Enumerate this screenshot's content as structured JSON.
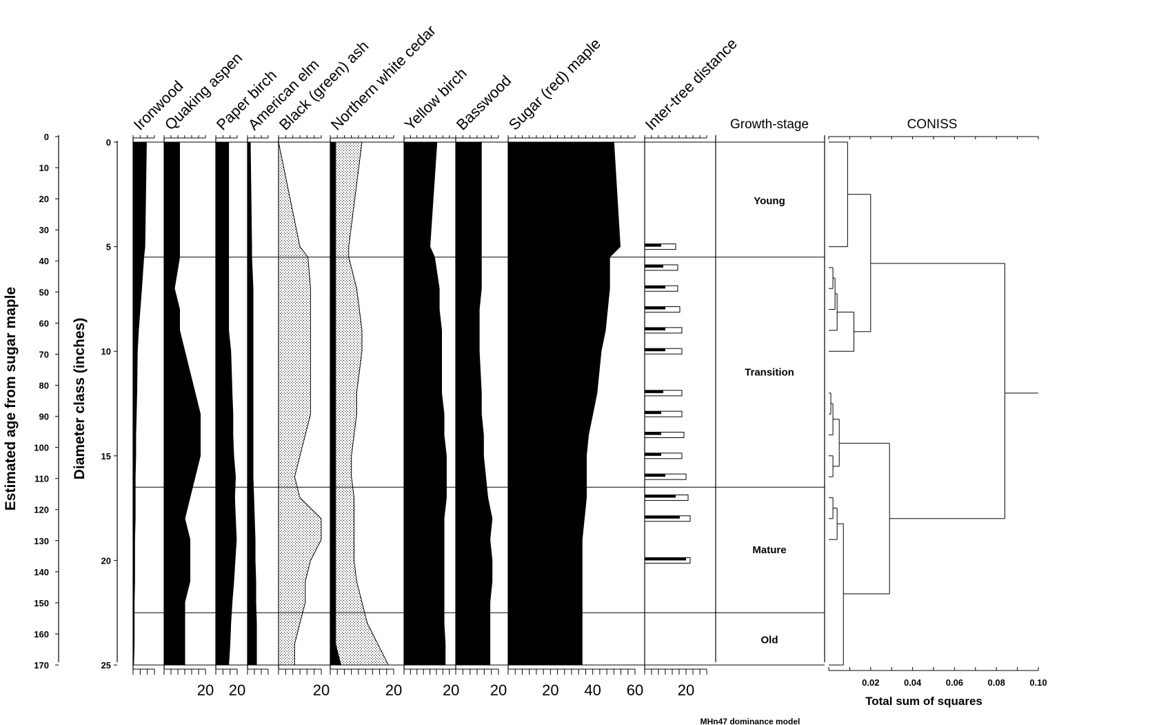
{
  "chart_data": {
    "type": "area",
    "title": "",
    "caption": "MHn47 dominance model",
    "left_axis": {
      "label": "Estimated age from sugar maple",
      "ticks": [
        0,
        10,
        20,
        30,
        40,
        50,
        60,
        70,
        80,
        90,
        100,
        110,
        120,
        130,
        140,
        150,
        160,
        170
      ],
      "range": [
        0,
        170
      ]
    },
    "depth_axis": {
      "label": "Diameter class (inches)",
      "ticks": [
        0,
        5,
        10,
        15,
        20,
        25
      ],
      "range": [
        0,
        25
      ]
    },
    "depths": [
      0,
      5,
      5.5,
      7,
      8,
      9,
      10,
      12,
      13,
      14,
      15,
      16,
      17,
      18,
      19,
      20,
      21,
      22,
      23,
      24,
      25
    ],
    "series": [
      {
        "name": "Ironwood",
        "style": "black",
        "values": [
          2.5,
          2.2,
          2.0,
          1.6,
          1.3,
          1.0,
          0.8,
          0.7,
          0.6,
          0.5,
          0.5,
          0.4,
          0.4,
          0.4,
          0.3,
          0.3,
          0.3,
          0.2,
          0.2,
          0.2,
          0.1
        ],
        "axis_max": 4,
        "bottom_label": ""
      },
      {
        "name": "Quaking aspen",
        "style": "black",
        "values": [
          3,
          3,
          3,
          2,
          3,
          3,
          4,
          6,
          7,
          7,
          7,
          6,
          5,
          4,
          5,
          5,
          5,
          4,
          4,
          4,
          4
        ],
        "axis_max": 8,
        "bottom_label": "20"
      },
      {
        "name": "Paper birch",
        "style": "black",
        "values": [
          3,
          3,
          3,
          3,
          3,
          3,
          3.5,
          3.8,
          4,
          4,
          4.2,
          4.6,
          4.4,
          4.6,
          4.8,
          4.5,
          4.2,
          3.8,
          3.5,
          3.3,
          3
        ],
        "axis_max": 5,
        "bottom_label": "20"
      },
      {
        "name": "American elm",
        "style": "black",
        "values": [
          0.4,
          0.6,
          0.6,
          0.8,
          0.8,
          0.8,
          0.8,
          0.8,
          0.8,
          0.8,
          0.8,
          0.8,
          0.9,
          1.0,
          1.1,
          1.1,
          1.2,
          1.2,
          1.3,
          1.3,
          1.3
        ],
        "axis_max": 3,
        "bottom_label": ""
      },
      {
        "name": "Black (green) ash",
        "style": "stipple",
        "values": [
          0,
          4,
          5.5,
          6,
          6,
          6,
          6,
          6,
          6,
          5,
          4,
          3,
          4,
          8,
          8,
          6,
          5,
          5,
          4,
          3,
          3
        ],
        "axis_max": 8,
        "bottom_label": "20"
      },
      {
        "name": "Northern white cedar",
        "style": "black_over_stipple",
        "under_values": [
          1,
          1,
          1,
          1,
          1,
          1,
          1,
          1,
          1,
          1,
          1,
          1,
          1,
          1,
          1,
          1,
          1,
          1,
          1,
          1,
          2
        ],
        "values": [
          5,
          2.5,
          2.5,
          4,
          4.5,
          5,
          5,
          4,
          4,
          3.5,
          3,
          3,
          3.5,
          3.5,
          3.5,
          3.5,
          4,
          5,
          6,
          8,
          9
        ],
        "axis_max": 12,
        "bottom_label": "20"
      },
      {
        "name": "Yellow birch",
        "style": "black",
        "values": [
          14,
          11,
          13,
          15,
          15,
          16,
          16,
          16,
          17,
          17,
          18,
          18,
          18,
          17,
          17,
          17,
          17,
          17,
          17,
          17.5,
          17.5
        ],
        "axis_max": 22,
        "bottom_label": "20"
      },
      {
        "name": "Basswood",
        "style": "black",
        "values": [
          12,
          12,
          12,
          12,
          11,
          11,
          11,
          12,
          12,
          13,
          13,
          14,
          15,
          17,
          16,
          17,
          17,
          16,
          16,
          16,
          16
        ],
        "axis_max": 20,
        "bottom_label": "20"
      },
      {
        "name": "Sugar (red) maple",
        "style": "black",
        "values": [
          50,
          53,
          48,
          48,
          47,
          46,
          44,
          42,
          40,
          38,
          37,
          37,
          37,
          36,
          35,
          35,
          35,
          35,
          35,
          35,
          35
        ],
        "axis_max": 60,
        "bottom_label": "60",
        "bottom_ticks": [
          "20",
          "40",
          "60"
        ]
      },
      {
        "name": "Inter-tree distance",
        "style": "bars",
        "values": [
          {
            "depth": 5,
            "mean": 8,
            "max": 15
          },
          {
            "depth": 6,
            "mean": 9,
            "max": 16
          },
          {
            "depth": 7,
            "mean": 10,
            "max": 16
          },
          {
            "depth": 8,
            "mean": 10,
            "max": 17
          },
          {
            "depth": 9,
            "mean": 10,
            "max": 18
          },
          {
            "depth": 10,
            "mean": 10,
            "max": 18
          },
          {
            "depth": 12,
            "mean": 9,
            "max": 18
          },
          {
            "depth": 13,
            "mean": 8,
            "max": 18
          },
          {
            "depth": 14,
            "mean": 8,
            "max": 19
          },
          {
            "depth": 15,
            "mean": 8,
            "max": 18
          },
          {
            "depth": 16,
            "mean": 10,
            "max": 20
          },
          {
            "depth": 17,
            "mean": 15,
            "max": 21
          },
          {
            "depth": 18,
            "mean": 17,
            "max": 22
          },
          {
            "depth": 20,
            "mean": 20,
            "max": 22
          }
        ],
        "axis_max": 30,
        "bottom_label": "20"
      }
    ],
    "zones": {
      "title": "Growth-stage",
      "boundaries": [
        5.5,
        16.5,
        22.5
      ],
      "labels": [
        {
          "name": "Young",
          "center": 2.8
        },
        {
          "name": "Transition",
          "center": 11
        },
        {
          "name": "Mature",
          "center": 19.5
        },
        {
          "name": "Old",
          "center": 23.8
        }
      ]
    },
    "coniss": {
      "title": "CONISS",
      "xlabel": "Total sum of squares",
      "xticks": [
        "0.02",
        "0.04",
        "0.06",
        "0.08",
        "0.10"
      ],
      "xrange": [
        0,
        0.1
      ],
      "segments": [
        [
          0,
          0.009,
          0,
          0
        ],
        [
          0,
          0.009,
          5,
          5
        ],
        [
          0.009,
          0.009,
          0,
          5
        ],
        [
          0.009,
          0.02,
          2.5,
          2.5
        ],
        [
          0,
          0.002,
          6,
          6
        ],
        [
          0,
          0.002,
          7,
          7
        ],
        [
          0.002,
          0.002,
          6,
          7
        ],
        [
          0.002,
          0.003,
          6.5,
          6.5
        ],
        [
          0,
          0.003,
          8,
          8
        ],
        [
          0.003,
          0.003,
          6.5,
          8
        ],
        [
          0.003,
          0.004,
          7.25,
          7.25
        ],
        [
          0,
          0.004,
          9,
          9
        ],
        [
          0.004,
          0.004,
          7.25,
          9
        ],
        [
          0.004,
          0.012,
          8.125,
          8.125
        ],
        [
          0,
          0.012,
          10,
          10
        ],
        [
          0.012,
          0.012,
          8.125,
          10
        ],
        [
          0.012,
          0.02,
          9.06,
          9.06
        ],
        [
          0.02,
          0.02,
          2.5,
          9.06
        ],
        [
          0.02,
          0.084,
          5.8,
          5.8
        ],
        [
          0,
          0.001,
          12,
          12
        ],
        [
          0,
          0.001,
          13,
          13
        ],
        [
          0.001,
          0.001,
          12,
          13
        ],
        [
          0.001,
          0.002,
          12.5,
          12.5
        ],
        [
          0,
          0.002,
          14,
          14
        ],
        [
          0.002,
          0.002,
          12.5,
          14
        ],
        [
          0.002,
          0.005,
          13.25,
          13.25
        ],
        [
          0,
          0.002,
          15,
          15
        ],
        [
          0,
          0.002,
          16,
          16
        ],
        [
          0.002,
          0.002,
          15,
          16
        ],
        [
          0.002,
          0.005,
          15.5,
          15.5
        ],
        [
          0.005,
          0.005,
          13.25,
          15.5
        ],
        [
          0.005,
          0.029,
          14.4,
          14.4
        ],
        [
          0,
          0.002,
          17,
          17
        ],
        [
          0,
          0.002,
          18,
          18
        ],
        [
          0.002,
          0.002,
          17,
          18
        ],
        [
          0.002,
          0.004,
          17.5,
          17.5
        ],
        [
          0,
          0.004,
          19,
          19
        ],
        [
          0.004,
          0.004,
          17.5,
          19
        ],
        [
          0.004,
          0.007,
          18.25,
          18.25
        ],
        [
          0,
          0.007,
          25,
          25
        ],
        [
          0.007,
          0.007,
          18.25,
          25
        ],
        [
          0.007,
          0.029,
          21.6,
          21.6
        ],
        [
          0.029,
          0.029,
          14.4,
          21.6
        ],
        [
          0.029,
          0.084,
          18,
          18
        ],
        [
          0.084,
          0.084,
          5.8,
          18
        ],
        [
          0.084,
          0.1,
          12,
          12
        ]
      ]
    }
  }
}
